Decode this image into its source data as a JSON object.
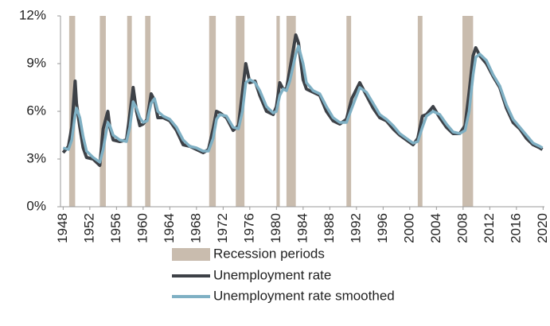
{
  "chart_data": {
    "type": "line",
    "x": [
      1948.0,
      1948.8,
      1949.3,
      1949.8,
      1950.0,
      1950.5,
      1951.0,
      1951.5,
      1952.5,
      1953.5,
      1954.0,
      1954.7,
      1955.0,
      1955.5,
      1956.5,
      1957.5,
      1958.0,
      1958.5,
      1959.0,
      1959.5,
      1960.0,
      1960.6,
      1961.2,
      1961.7,
      1962.2,
      1963.0,
      1964.0,
      1965.0,
      1966.0,
      1967.0,
      1968.0,
      1969.0,
      1969.8,
      1970.5,
      1971.0,
      1971.5,
      1972.5,
      1973.5,
      1974.3,
      1974.9,
      1975.4,
      1976.0,
      1976.8,
      1977.5,
      1978.5,
      1979.5,
      1980.0,
      1980.5,
      1981.0,
      1981.5,
      1982.0,
      1982.9,
      1983.3,
      1984.0,
      1984.5,
      1985.5,
      1986.5,
      1987.5,
      1988.5,
      1989.5,
      1990.5,
      1991.3,
      1992.5,
      1993.5,
      1994.5,
      1995.5,
      1996.5,
      1997.5,
      1998.5,
      1999.5,
      2000.5,
      2001.2,
      2001.9,
      2002.5,
      2003.5,
      2004.5,
      2005.5,
      2006.5,
      2007.5,
      2008.3,
      2008.9,
      2009.5,
      2009.9,
      2010.5,
      2011.5,
      2012.5,
      2013.5,
      2014.5,
      2015.5,
      2016.5,
      2017.5,
      2018.5,
      2019.5,
      2019.9
    ],
    "series": [
      {
        "name": "Unemployment rate",
        "color": "#3d4147",
        "values": [
          3.4,
          3.8,
          5.0,
          7.9,
          6.5,
          5.0,
          3.7,
          3.1,
          3.0,
          2.6,
          4.9,
          6.0,
          5.0,
          4.2,
          4.1,
          4.2,
          5.8,
          7.5,
          6.0,
          5.1,
          5.2,
          5.5,
          7.1,
          6.7,
          5.6,
          5.6,
          5.4,
          4.8,
          3.9,
          3.8,
          3.6,
          3.4,
          3.6,
          4.9,
          6.0,
          5.9,
          5.6,
          4.8,
          5.1,
          7.2,
          9.0,
          7.8,
          7.9,
          7.0,
          6.0,
          5.8,
          6.3,
          7.8,
          7.4,
          7.4,
          8.6,
          10.8,
          10.3,
          8.0,
          7.4,
          7.2,
          7.0,
          6.0,
          5.4,
          5.2,
          5.5,
          6.8,
          7.8,
          7.0,
          6.2,
          5.6,
          5.4,
          4.9,
          4.5,
          4.2,
          3.9,
          4.3,
          5.7,
          5.8,
          6.3,
          5.6,
          5.0,
          4.6,
          4.6,
          5.1,
          7.2,
          9.5,
          10.0,
          9.5,
          9.0,
          8.2,
          7.5,
          6.2,
          5.3,
          4.9,
          4.3,
          3.9,
          3.7,
          3.6
        ]
      },
      {
        "name": "Unemployment rate smoothed",
        "color": "#7fb0c4",
        "values": [
          3.7,
          3.6,
          4.2,
          5.8,
          6.2,
          5.6,
          4.4,
          3.5,
          3.1,
          2.8,
          3.6,
          5.3,
          5.1,
          4.5,
          4.2,
          4.1,
          5.0,
          6.6,
          6.2,
          5.6,
          5.3,
          5.4,
          6.5,
          6.8,
          6.0,
          5.7,
          5.5,
          5.0,
          4.2,
          3.8,
          3.7,
          3.5,
          3.5,
          4.3,
          5.5,
          5.8,
          5.7,
          5.0,
          4.9,
          6.0,
          7.8,
          8.0,
          7.8,
          7.3,
          6.3,
          5.9,
          6.0,
          7.0,
          7.4,
          7.3,
          7.9,
          9.6,
          10.1,
          9.0,
          7.8,
          7.3,
          7.1,
          6.3,
          5.6,
          5.3,
          5.3,
          6.2,
          7.5,
          7.2,
          6.5,
          5.8,
          5.5,
          5.1,
          4.6,
          4.3,
          4.0,
          4.1,
          5.0,
          5.7,
          6.0,
          5.8,
          5.2,
          4.7,
          4.6,
          4.8,
          6.0,
          8.3,
          9.4,
          9.6,
          9.2,
          8.3,
          7.6,
          6.4,
          5.5,
          5.0,
          4.5,
          4.0,
          3.8,
          3.7
        ]
      }
    ],
    "recessions": {
      "name": "Recession periods",
      "color": "#c9bcae",
      "periods": [
        [
          1948.9,
          1949.8
        ],
        [
          1953.5,
          1954.4
        ],
        [
          1957.6,
          1958.3
        ],
        [
          1960.3,
          1961.1
        ],
        [
          1969.9,
          1970.9
        ],
        [
          1973.9,
          1975.2
        ],
        [
          1980.0,
          1980.5
        ],
        [
          1981.5,
          1982.9
        ],
        [
          1990.5,
          1991.2
        ],
        [
          2001.2,
          2001.9
        ],
        [
          2007.9,
          2009.5
        ]
      ]
    },
    "xlim": [
      1947.6,
      2020.2
    ],
    "xticks": [
      1948,
      1952,
      1956,
      1960,
      1964,
      1968,
      1972,
      1976,
      1980,
      1984,
      1988,
      1992,
      1996,
      2000,
      2004,
      2008,
      2012,
      2016,
      2020
    ],
    "ylim": [
      0,
      12
    ],
    "yticks": [
      {
        "value": 0,
        "label": "0%"
      },
      {
        "value": 3,
        "label": "3%"
      },
      {
        "value": 6,
        "label": "6%"
      },
      {
        "value": 9,
        "label": "9%"
      },
      {
        "value": 12,
        "label": "12%"
      }
    ]
  }
}
